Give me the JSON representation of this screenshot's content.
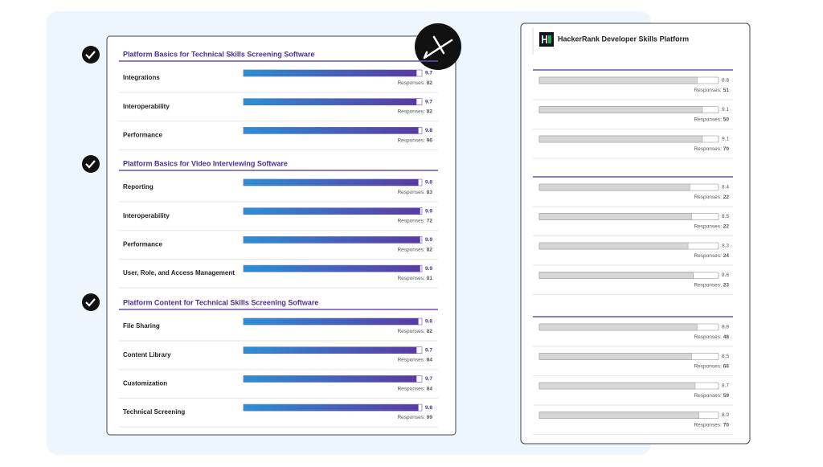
{
  "xlim": [
    0,
    10
  ],
  "responses_label": "Responses:",
  "left": {
    "sections": [
      {
        "title": "Platform Basics for Technical Skills Screening Software",
        "rows": [
          {
            "label": "Integrations",
            "score": 9.7,
            "responses": 82
          },
          {
            "label": "Interoperability",
            "score": 9.7,
            "responses": 82
          },
          {
            "label": "Performance",
            "score": 9.8,
            "responses": 96
          }
        ]
      },
      {
        "title": "Platform Basics for Video Interviewing Software",
        "rows": [
          {
            "label": "Reporting",
            "score": 9.8,
            "responses": 83
          },
          {
            "label": "Interoperability",
            "score": 9.9,
            "responses": 72
          },
          {
            "label": "Performance",
            "score": 9.9,
            "responses": 82
          },
          {
            "label": "User, Role, and Access Management",
            "score": 9.9,
            "responses": 81
          }
        ]
      },
      {
        "title": "Platform Content for Technical Skills Screening Software",
        "rows": [
          {
            "label": "File Sharing",
            "score": 9.8,
            "responses": 82
          },
          {
            "label": "Content Library",
            "score": 9.7,
            "responses": 84
          },
          {
            "label": "Customization",
            "score": 9.7,
            "responses": 84
          },
          {
            "label": "Technical Screening",
            "score": 9.8,
            "responses": 99
          }
        ]
      }
    ]
  },
  "right": {
    "title": "HackerRank Developer Skills Platform",
    "sections": [
      {
        "rows": [
          {
            "score": 8.8,
            "responses": 51
          },
          {
            "score": 9.1,
            "responses": 50
          },
          {
            "score": 9.1,
            "responses": 70
          }
        ]
      },
      {
        "rows": [
          {
            "score": 8.4,
            "responses": 22
          },
          {
            "score": 8.5,
            "responses": 22
          },
          {
            "score": 8.3,
            "responses": 24
          },
          {
            "score": 8.6,
            "responses": 23
          }
        ]
      },
      {
        "rows": [
          {
            "score": 8.8,
            "responses": 48
          },
          {
            "score": 8.5,
            "responses": 66
          },
          {
            "score": 8.7,
            "responses": 59
          },
          {
            "score": 8.9,
            "responses": 70
          }
        ]
      }
    ]
  }
}
